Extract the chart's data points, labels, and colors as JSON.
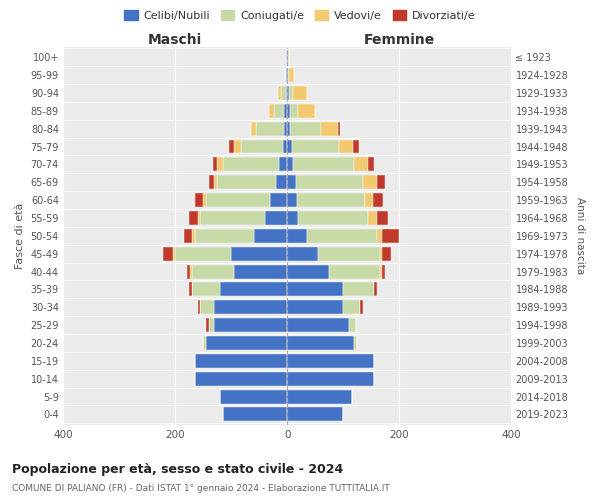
{
  "age_groups": [
    "0-4",
    "5-9",
    "10-14",
    "15-19",
    "20-24",
    "25-29",
    "30-34",
    "35-39",
    "40-44",
    "45-49",
    "50-54",
    "55-59",
    "60-64",
    "65-69",
    "70-74",
    "75-79",
    "80-84",
    "85-89",
    "90-94",
    "95-99",
    "100+"
  ],
  "birth_years": [
    "2019-2023",
    "2014-2018",
    "2009-2013",
    "2004-2008",
    "1999-2003",
    "1994-1998",
    "1989-1993",
    "1984-1988",
    "1979-1983",
    "1974-1978",
    "1969-1973",
    "1964-1968",
    "1959-1963",
    "1954-1958",
    "1949-1953",
    "1944-1948",
    "1939-1943",
    "1934-1938",
    "1929-1933",
    "1924-1928",
    "≤ 1923"
  ],
  "maschi": {
    "celibi": [
      115,
      120,
      165,
      165,
      145,
      130,
      130,
      120,
      95,
      100,
      60,
      40,
      30,
      20,
      15,
      8,
      5,
      5,
      3,
      2,
      2
    ],
    "coniugati": [
      0,
      0,
      0,
      0,
      5,
      10,
      25,
      50,
      75,
      100,
      105,
      115,
      115,
      105,
      100,
      75,
      50,
      18,
      8,
      2,
      0
    ],
    "vedovi": [
      0,
      0,
      0,
      0,
      0,
      0,
      0,
      0,
      3,
      3,
      5,
      5,
      5,
      5,
      10,
      12,
      10,
      10,
      5,
      0,
      0
    ],
    "divorziati": [
      0,
      0,
      0,
      0,
      0,
      5,
      5,
      5,
      5,
      18,
      15,
      15,
      15,
      10,
      8,
      8,
      0,
      0,
      0,
      0,
      0
    ]
  },
  "femmine": {
    "nubili": [
      100,
      115,
      155,
      155,
      120,
      110,
      100,
      100,
      75,
      55,
      35,
      20,
      18,
      15,
      10,
      8,
      5,
      5,
      3,
      2,
      2
    ],
    "coniugate": [
      0,
      0,
      0,
      0,
      5,
      12,
      30,
      55,
      90,
      110,
      125,
      125,
      120,
      120,
      110,
      85,
      55,
      15,
      8,
      2,
      0
    ],
    "vedove": [
      0,
      0,
      0,
      0,
      0,
      0,
      0,
      0,
      5,
      5,
      10,
      15,
      15,
      25,
      25,
      25,
      30,
      30,
      25,
      8,
      2
    ],
    "divorziate": [
      0,
      0,
      0,
      0,
      0,
      0,
      5,
      5,
      5,
      15,
      30,
      20,
      18,
      15,
      10,
      10,
      5,
      0,
      0,
      0,
      0
    ]
  },
  "colors": {
    "celibi": "#4472C4",
    "coniugati": "#c8d9a8",
    "vedovi": "#f2c96e",
    "divorziati": "#c0392b"
  },
  "legend_labels": [
    "Celibi/Nubili",
    "Coniugati/e",
    "Vedovi/e",
    "Divorziati/e"
  ],
  "title1": "Popolazione per età, sesso e stato civile - 2024",
  "title2": "COMUNE DI PALIANO (FR) - Dati ISTAT 1° gennaio 2024 - Elaborazione TUTTITALIA.IT",
  "xlabel_left": "Maschi",
  "xlabel_right": "Femmine",
  "ylabel_left": "Fasce di età",
  "ylabel_right": "Anni di nascita",
  "xlim": 400,
  "bg_color": "#ffffff",
  "plot_bg": "#ebebeb",
  "grid_color": "#ffffff"
}
